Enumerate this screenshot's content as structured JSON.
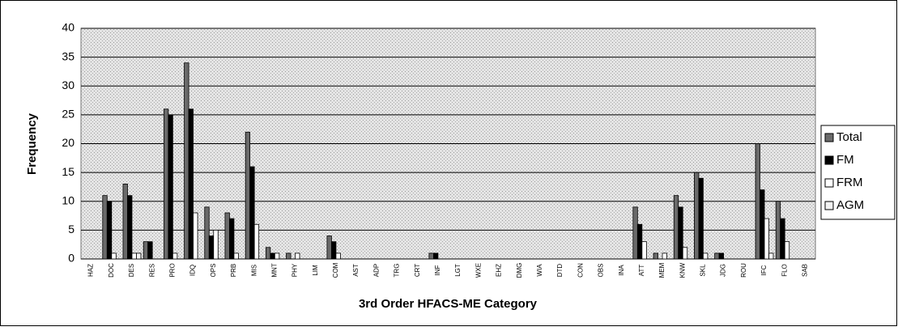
{
  "chart_data": {
    "type": "bar",
    "x_label": "3rd Order HFACS-ME Category",
    "y_label": "Frequency",
    "categories": [
      "HAZ",
      "DOC",
      "DES",
      "RES",
      "PRO",
      "IDQ",
      "OPS",
      "PRB",
      "MIS",
      "MNT",
      "PHY",
      "LIM",
      "COM",
      "AST",
      "ADP",
      "TRG",
      "CRT",
      "INF",
      "LGT",
      "WXE",
      "EHZ",
      "DMG",
      "WIA",
      "DTD",
      "CON",
      "OBS",
      "INA",
      "ATT",
      "MEM",
      "KNW",
      "SKL",
      "JDG",
      "ROU",
      "IFC",
      "FLO",
      "SAB"
    ],
    "series": [
      {
        "name": "Total",
        "color": "#6a6a6a",
        "values": [
          0,
          11,
          13,
          3,
          26,
          34,
          9,
          8,
          22,
          2,
          1,
          0,
          4,
          0,
          0,
          0,
          0,
          1,
          0,
          0,
          0,
          0,
          0,
          0,
          0,
          0,
          0,
          9,
          1,
          11,
          15,
          1,
          0,
          20,
          10,
          0
        ]
      },
      {
        "name": "FM",
        "color": "#000000",
        "values": [
          0,
          10,
          11,
          3,
          25,
          26,
          4,
          7,
          16,
          1,
          0,
          0,
          3,
          0,
          0,
          0,
          0,
          1,
          0,
          0,
          0,
          0,
          0,
          0,
          0,
          0,
          0,
          6,
          0,
          9,
          14,
          1,
          0,
          12,
          7,
          0
        ]
      },
      {
        "name": "FRM",
        "color": "#ffffff",
        "values": [
          0,
          1,
          1,
          0,
          1,
          8,
          5,
          1,
          6,
          1,
          1,
          0,
          1,
          0,
          0,
          0,
          0,
          0,
          0,
          0,
          0,
          0,
          0,
          0,
          0,
          0,
          0,
          3,
          1,
          2,
          1,
          0,
          0,
          7,
          3,
          0
        ]
      },
      {
        "name": "AGM",
        "color": "#f2f2f2",
        "values": [
          0,
          0,
          1,
          0,
          0,
          0,
          0,
          0,
          0,
          0,
          0,
          0,
          0,
          0,
          0,
          0,
          0,
          0,
          0,
          0,
          0,
          0,
          0,
          0,
          0,
          0,
          0,
          0,
          0,
          0,
          0,
          0,
          0,
          1,
          0,
          0
        ]
      }
    ],
    "ylim": [
      0,
      40
    ],
    "yticks": [
      0,
      5,
      10,
      15,
      20,
      25,
      30,
      35,
      40
    ],
    "grid": true,
    "legend": "right"
  }
}
